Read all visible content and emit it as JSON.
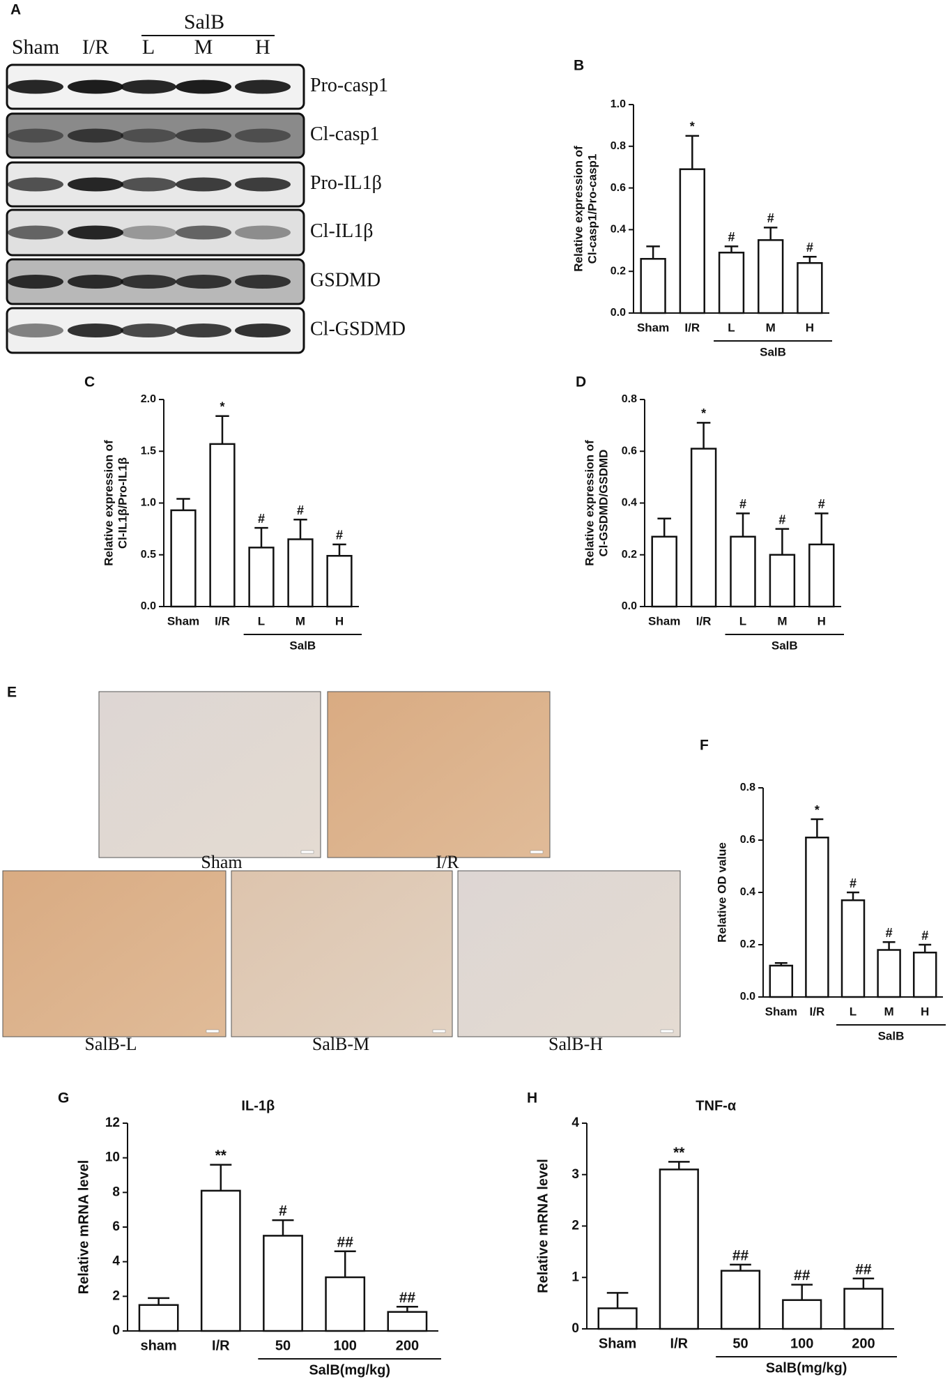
{
  "panel_labels": [
    "A",
    "B",
    "C",
    "D",
    "E",
    "F",
    "G",
    "H"
  ],
  "blot": {
    "lanes": [
      "Sham",
      "I/R",
      "L",
      "M",
      "H"
    ],
    "group": "SalB",
    "bands": [
      "Pro-casp1",
      "Cl-casp1",
      "Pro-IL1β",
      "Cl-IL1β",
      "GSDMD",
      "Cl-GSDMD"
    ]
  },
  "histology": {
    "images": [
      "Sham",
      "I/R",
      "SalB-L",
      "SalB-M",
      "SalB-H"
    ]
  },
  "chart_data": [
    {
      "type": "bar",
      "ylabel": [
        "Relative expression of",
        "Cl-casp1/Pro-casp1"
      ],
      "categories": [
        "Sham",
        "I/R",
        "L",
        "M",
        "H"
      ],
      "group_label": "SalB",
      "values": [
        0.26,
        0.69,
        0.29,
        0.35,
        0.24
      ],
      "errors": [
        0.06,
        0.16,
        0.03,
        0.06,
        0.03
      ],
      "annotations": [
        null,
        "*",
        "#",
        "#",
        "#"
      ],
      "ylim": [
        0,
        1
      ],
      "yticks": [
        {
          "value": 0,
          "label": "0.0"
        },
        0.2,
        0.4,
        0.6,
        0.8,
        {
          "value": 1,
          "label": "1.0"
        }
      ]
    },
    {
      "type": "bar",
      "ylabel": [
        "Relative expression of",
        "Cl-IL1β/Pro-IL1β"
      ],
      "categories": [
        "Sham",
        "I/R",
        "L",
        "M",
        "H"
      ],
      "group_label": "SalB",
      "values": [
        0.93,
        1.57,
        0.57,
        0.65,
        0.49
      ],
      "errors": [
        0.11,
        0.27,
        0.19,
        0.19,
        0.11
      ],
      "annotations": [
        null,
        "*",
        "#",
        "#",
        "#"
      ],
      "ylim": [
        0,
        2
      ],
      "yticks": [
        {
          "value": 0,
          "label": "0.0"
        },
        0.5,
        {
          "value": 1,
          "label": "1.0"
        },
        1.5,
        {
          "value": 2,
          "label": "2.0"
        }
      ]
    },
    {
      "type": "bar",
      "ylabel": [
        "Relative expression of",
        "Cl-GSDMD/GSDMD"
      ],
      "categories": [
        "Sham",
        "I/R",
        "L",
        "M",
        "H"
      ],
      "group_label": "SalB",
      "values": [
        0.27,
        0.61,
        0.27,
        0.2,
        0.24
      ],
      "errors": [
        0.07,
        0.1,
        0.09,
        0.1,
        0.12
      ],
      "annotations": [
        null,
        "*",
        "#",
        "#",
        "#"
      ],
      "ylim": [
        0,
        0.8
      ],
      "yticks": [
        {
          "value": 0,
          "label": "0.0"
        },
        0.2,
        0.4,
        0.6,
        0.8
      ]
    },
    {
      "type": "bar",
      "ylabel": [
        "Relative  OD value"
      ],
      "categories": [
        "Sham",
        "I/R",
        "L",
        "M",
        "H"
      ],
      "group_label": "SalB",
      "values": [
        0.12,
        0.61,
        0.37,
        0.18,
        0.17
      ],
      "errors": [
        0.01,
        0.07,
        0.03,
        0.03,
        0.03
      ],
      "annotations": [
        null,
        "*",
        "#",
        "#",
        "#"
      ],
      "ylim": [
        0,
        0.8
      ],
      "yticks": [
        {
          "value": 0,
          "label": "0.0"
        },
        0.2,
        0.4,
        0.6,
        0.8
      ]
    },
    {
      "type": "bar",
      "title": "IL-1β",
      "ylabel": [
        "Relative mRNA level"
      ],
      "categories": [
        "sham",
        "I/R",
        "50",
        "100",
        "200"
      ],
      "group_label": "SalB(mg/kg)",
      "values": [
        1.5,
        8.1,
        5.5,
        3.1,
        1.1
      ],
      "errors": [
        0.4,
        1.5,
        0.9,
        1.5,
        0.3
      ],
      "annotations": [
        null,
        "**",
        "#",
        "##",
        "##"
      ],
      "ylim": [
        0,
        12
      ],
      "yticks": [
        0,
        2,
        4,
        6,
        8,
        10,
        12
      ]
    },
    {
      "type": "bar",
      "title": "TNF-α",
      "ylabel": [
        "Relative mRNA level"
      ],
      "categories": [
        "Sham",
        "I/R",
        "50",
        "100",
        "200"
      ],
      "group_label": "SalB(mg/kg)",
      "values": [
        0.4,
        3.1,
        1.13,
        0.56,
        0.78
      ],
      "errors": [
        0.3,
        0.15,
        0.12,
        0.3,
        0.2
      ],
      "annotations": [
        null,
        "**",
        "##",
        "##",
        "##"
      ],
      "ylim": [
        0,
        4
      ],
      "yticks": [
        0,
        1,
        2,
        3,
        4
      ]
    }
  ]
}
